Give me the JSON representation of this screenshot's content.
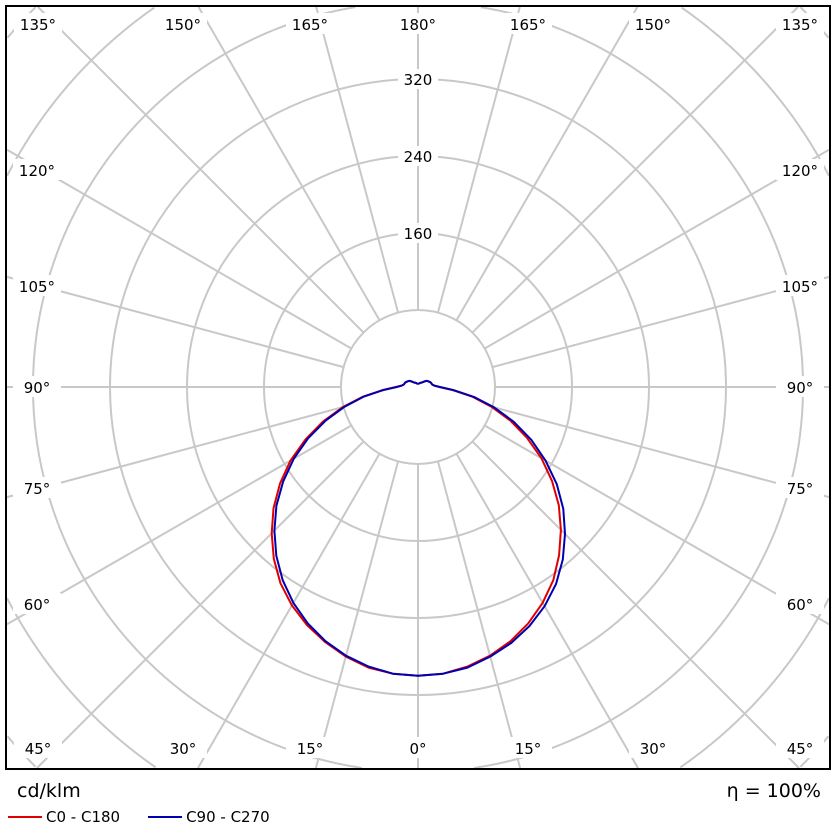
{
  "chart_data": {
    "type": "polar-line",
    "unit": "cd/klm",
    "efficiency_label": "η = 100%",
    "radial_ticks": [
      80,
      160,
      240,
      320,
      400,
      480,
      560
    ],
    "radial_tick_labels": [
      "160",
      "240",
      "320"
    ],
    "radial_max_visible": 400,
    "angle_step": 15,
    "angle_labels": {
      "top": [
        "135°",
        "150°",
        "165°",
        "180°",
        "165°",
        "150°",
        "135°"
      ],
      "left": [
        "120°",
        "105°",
        "90°",
        "75°",
        "60°"
      ],
      "right": [
        "120°",
        "105°",
        "90°",
        "75°",
        "60°"
      ],
      "bottom": [
        "45°",
        "30°",
        "15°",
        "0°",
        "15°",
        "30°",
        "45°"
      ]
    },
    "gamma": [
      0,
      5,
      10,
      15,
      20,
      25,
      30,
      35,
      40,
      45,
      50,
      55,
      60,
      65,
      70,
      75,
      80,
      85,
      90,
      95,
      100,
      110,
      120,
      125,
      130,
      140,
      150,
      160,
      170,
      180
    ],
    "series": [
      {
        "name": "C0 - C180",
        "color": "#e00000",
        "left": [
          300,
          299,
          296,
          290,
          282,
          273,
          262,
          249,
          233,
          215,
          196,
          175,
          153,
          129,
          105,
          81,
          58,
          37,
          23,
          17,
          15,
          14,
          12,
          11,
          9,
          6,
          5,
          4,
          3.5,
          3
        ],
        "right": [
          300,
          299,
          295,
          289,
          281,
          271,
          259,
          245,
          228,
          210,
          191,
          170,
          148,
          125,
          102,
          79,
          57,
          36,
          22,
          17,
          15,
          14,
          12,
          11,
          9,
          6,
          5,
          4,
          3.5,
          3
        ]
      },
      {
        "name": "C90 - C270",
        "color": "#0000b0",
        "left": [
          300,
          299,
          295,
          289,
          281,
          271,
          259,
          245,
          229,
          211,
          192,
          171,
          149,
          126,
          102,
          79,
          57,
          36,
          22,
          17,
          15,
          14,
          12,
          11,
          9,
          6,
          5,
          4,
          3.5,
          3
        ],
        "right": [
          300,
          299,
          296,
          290,
          283,
          274,
          263,
          250,
          234,
          216,
          197,
          176,
          153,
          130,
          106,
          82,
          59,
          37,
          23,
          17,
          15,
          14,
          12,
          11,
          9,
          6,
          5,
          4,
          3.5,
          3
        ]
      }
    ]
  }
}
